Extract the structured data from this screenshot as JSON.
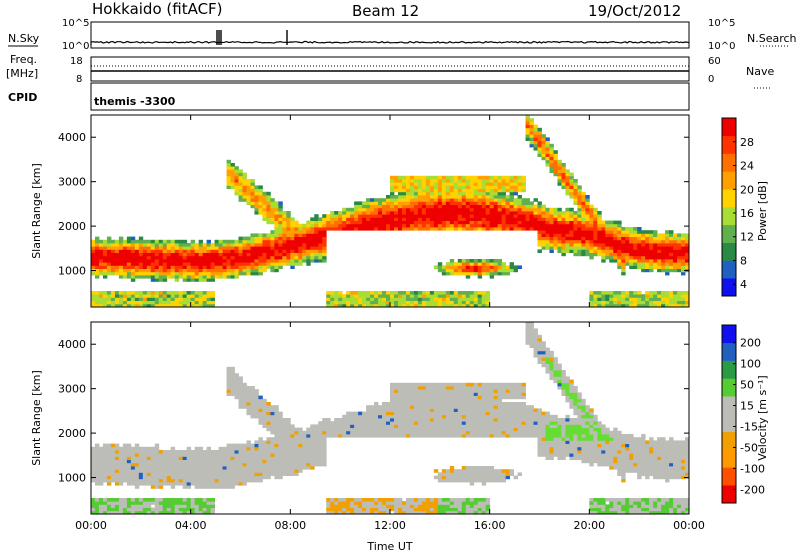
{
  "header": {
    "title": "Hokkaido (fitACF)",
    "beam": "Beam 12",
    "date": "19/Oct/2012"
  },
  "aux_panels": {
    "nsky_label": "N.Sky",
    "nsearch_label": "N.Search",
    "noise_ticks_left": [
      "10^5",
      "10^0"
    ],
    "noise_ticks_right": [
      "10^5",
      "10^0"
    ],
    "freq_label": "Freq.",
    "freq_unit": "[MHz]",
    "freq_ticks": [
      "18",
      "8"
    ],
    "nave_label": "Nave",
    "nave_ticks": [
      "60",
      "0"
    ],
    "cpid_label": "CPID",
    "cpid_value": "themis -3300"
  },
  "chart_data": [
    {
      "type": "heatmap",
      "ylabel": "Slant Range [km]",
      "xlabel": "Time UT",
      "x_ticks": [
        "00:00",
        "04:00",
        "08:00",
        "12:00",
        "16:00",
        "20:00",
        "00:00"
      ],
      "x_range_hours": [
        0,
        24
      ],
      "y_ticks": [
        1000,
        2000,
        3000,
        4000
      ],
      "ylim": [
        180,
        4500
      ],
      "colorbar": {
        "label": "Power [dB]",
        "ticks": [
          28,
          24,
          20,
          16,
          12,
          8,
          4
        ],
        "range": [
          0,
          32
        ],
        "colors": [
          "#1010ee",
          "#2060c0",
          "#2a8a45",
          "#60b050",
          "#aadd33",
          "#ffd200",
          "#ffa000",
          "#ff7000",
          "#ff3300",
          "#ee0000"
        ]
      }
    },
    {
      "type": "heatmap",
      "ylabel": "Slant Range [km]",
      "xlabel": "Time UT",
      "x_ticks": [
        "00:00",
        "04:00",
        "08:00",
        "12:00",
        "16:00",
        "20:00",
        "00:00"
      ],
      "x_range_hours": [
        0,
        24
      ],
      "y_ticks": [
        1000,
        2000,
        3000,
        4000
      ],
      "ylim": [
        180,
        4500
      ],
      "colorbar": {
        "label": "Velocity [m s⁻¹]",
        "ticks": [
          "200",
          "100",
          "50",
          "15",
          "-15",
          "-50",
          "-100",
          "-200"
        ],
        "range": [
          -250,
          250
        ],
        "colors": [
          "#ee0000",
          "#ff5000",
          "#ff9900",
          "#f0a000",
          "#bdbdb8",
          "#bdbdb8",
          "#55cc33",
          "#2a9a45",
          "#2060c0",
          "#1010ee"
        ]
      }
    }
  ]
}
